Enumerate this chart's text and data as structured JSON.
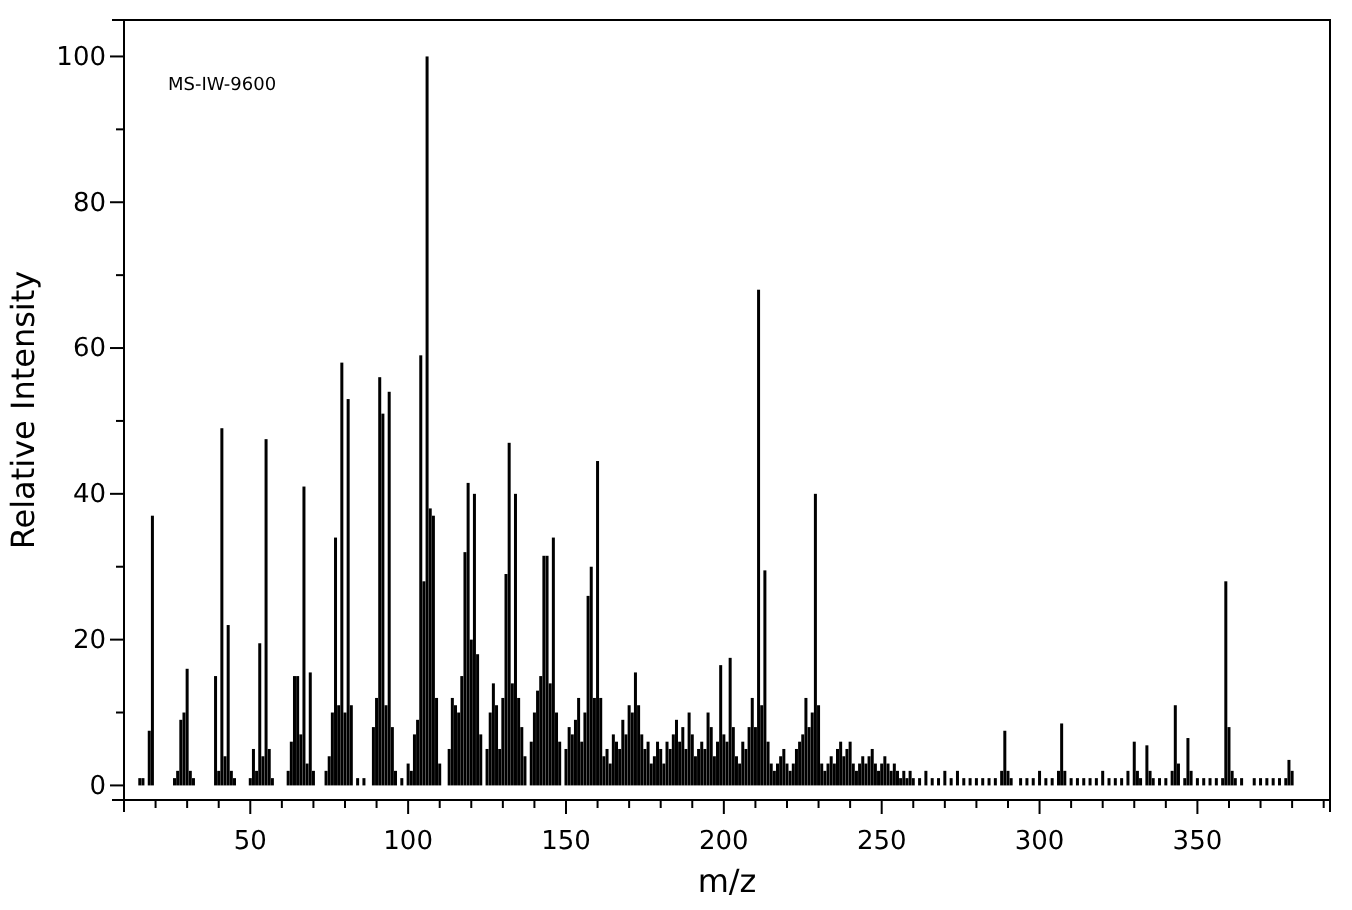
{
  "chart_data": {
    "type": "bar",
    "xlabel": "m/z",
    "ylabel": "Relative Intensity",
    "annotations": [
      "MS-IW-9600"
    ],
    "color": "#000000",
    "xlim": [
      10,
      392
    ],
    "ylim": [
      -2,
      105
    ],
    "xticks": [
      {
        "value": 10,
        "label": null
      },
      {
        "value": 20,
        "label": null
      },
      {
        "value": 30,
        "label": null
      },
      {
        "value": 40,
        "label": null
      },
      50,
      {
        "value": 60,
        "label": null
      },
      {
        "value": 70,
        "label": null
      },
      {
        "value": 80,
        "label": null
      },
      {
        "value": 90,
        "label": null
      },
      100,
      {
        "value": 110,
        "label": null
      },
      {
        "value": 120,
        "label": null
      },
      {
        "value": 130,
        "label": null
      },
      {
        "value": 140,
        "label": null
      },
      150,
      {
        "value": 160,
        "label": null
      },
      {
        "value": 170,
        "label": null
      },
      {
        "value": 180,
        "label": null
      },
      {
        "value": 190,
        "label": null
      },
      200,
      {
        "value": 210,
        "label": null
      },
      {
        "value": 220,
        "label": null
      },
      {
        "value": 230,
        "label": null
      },
      {
        "value": 240,
        "label": null
      },
      250,
      {
        "value": 260,
        "label": null
      },
      {
        "value": 270,
        "label": null
      },
      {
        "value": 280,
        "label": null
      },
      {
        "value": 290,
        "label": null
      },
      300,
      {
        "value": 310,
        "label": null
      },
      {
        "value": 320,
        "label": null
      },
      {
        "value": 330,
        "label": null
      },
      {
        "value": 340,
        "label": null
      },
      350,
      {
        "value": 360,
        "label": null
      },
      {
        "value": 370,
        "label": null
      },
      {
        "value": 380,
        "label": null
      },
      {
        "value": 390,
        "label": null
      }
    ],
    "yticks": [
      0,
      {
        "value": 10,
        "label": null
      },
      20,
      {
        "value": 30,
        "label": null
      },
      40,
      {
        "value": 50,
        "label": null
      },
      60,
      {
        "value": 70,
        "label": null
      },
      80,
      {
        "value": 90,
        "label": null
      },
      100
    ],
    "x": [
      15,
      16,
      18,
      19,
      26,
      27,
      28,
      29,
      30,
      31,
      32,
      39,
      40,
      41,
      42,
      43,
      44,
      45,
      50,
      51,
      52,
      53,
      54,
      55,
      56,
      57,
      62,
      63,
      64,
      65,
      66,
      67,
      68,
      69,
      70,
      74,
      75,
      76,
      77,
      78,
      79,
      80,
      81,
      82,
      84,
      86,
      89,
      90,
      91,
      92,
      93,
      94,
      95,
      96,
      98,
      100,
      101,
      102,
      103,
      104,
      105,
      106,
      107,
      108,
      109,
      110,
      113,
      114,
      115,
      116,
      117,
      118,
      119,
      120,
      121,
      122,
      123,
      125,
      126,
      127,
      128,
      129,
      130,
      131,
      132,
      133,
      134,
      135,
      136,
      137,
      139,
      140,
      141,
      142,
      143,
      144,
      145,
      146,
      147,
      148,
      150,
      151,
      152,
      153,
      154,
      155,
      156,
      157,
      158,
      159,
      160,
      161,
      162,
      163,
      164,
      165,
      166,
      167,
      168,
      169,
      170,
      171,
      172,
      173,
      174,
      175,
      176,
      177,
      178,
      179,
      180,
      181,
      182,
      183,
      184,
      185,
      186,
      187,
      188,
      189,
      190,
      191,
      192,
      193,
      194,
      195,
      196,
      197,
      198,
      199,
      200,
      201,
      202,
      203,
      204,
      205,
      206,
      207,
      208,
      209,
      210,
      211,
      212,
      213,
      214,
      215,
      216,
      217,
      218,
      219,
      220,
      221,
      222,
      223,
      224,
      225,
      226,
      227,
      228,
      229,
      230,
      231,
      232,
      233,
      234,
      235,
      236,
      237,
      238,
      239,
      240,
      241,
      242,
      243,
      244,
      245,
      246,
      247,
      248,
      249,
      250,
      251,
      252,
      253,
      254,
      255,
      256,
      257,
      258,
      259,
      260,
      262,
      264,
      266,
      268,
      270,
      272,
      274,
      276,
      278,
      280,
      282,
      284,
      286,
      288,
      289,
      290,
      291,
      294,
      296,
      298,
      300,
      302,
      304,
      306,
      307,
      308,
      310,
      312,
      314,
      316,
      318,
      320,
      322,
      324,
      326,
      328,
      330,
      331,
      332,
      334,
      335,
      336,
      338,
      340,
      342,
      343,
      344,
      346,
      347,
      348,
      350,
      352,
      354,
      356,
      358,
      359,
      360,
      361,
      362,
      364,
      368,
      370,
      372,
      374,
      376,
      378,
      379,
      380
    ],
    "values": [
      1,
      1,
      7.5,
      37,
      1,
      2,
      9,
      10,
      16,
      2,
      1,
      15,
      2,
      49,
      4,
      22,
      2,
      1,
      1,
      5,
      2,
      19.5,
      4,
      47.5,
      5,
      1,
      2,
      6,
      15,
      15,
      7,
      41,
      3,
      15.5,
      2,
      2,
      4,
      10,
      34,
      11,
      58,
      10,
      53,
      11,
      1,
      1,
      8,
      12,
      56,
      51,
      11,
      54,
      8,
      2,
      1,
      3,
      2,
      7,
      9,
      59,
      28,
      100,
      38,
      37,
      12,
      3,
      5,
      12,
      11,
      10,
      15,
      32,
      41.5,
      20,
      40,
      18,
      7,
      5,
      10,
      14,
      11,
      5,
      12,
      29,
      47,
      14,
      40,
      12,
      8,
      4,
      6,
      10,
      13,
      15,
      31.5,
      31.5,
      14,
      34,
      10,
      6,
      5,
      8,
      7,
      9,
      12,
      6,
      10,
      26,
      30,
      12,
      44.5,
      12,
      4,
      5,
      3,
      7,
      6,
      5,
      9,
      7,
      11,
      10,
      15.5,
      11,
      7,
      5,
      6,
      3,
      4,
      6,
      5,
      3,
      6,
      5,
      7,
      9,
      6,
      8,
      5,
      10,
      7,
      4,
      5,
      6,
      5,
      10,
      8,
      4,
      6,
      16.5,
      7,
      6,
      17.5,
      8,
      4,
      3,
      6,
      5,
      8,
      12,
      8,
      68,
      11,
      29.5,
      6,
      3,
      2,
      3,
      4,
      5,
      3,
      2,
      3,
      5,
      6,
      7,
      12,
      8,
      10,
      40,
      11,
      3,
      2,
      3,
      4,
      3,
      5,
      6,
      4,
      5,
      6,
      3,
      2,
      3,
      4,
      3,
      4,
      5,
      3,
      2,
      3,
      4,
      3,
      2,
      3,
      2,
      1,
      2,
      1,
      2,
      1,
      1,
      2,
      1,
      1,
      2,
      1,
      2,
      1,
      1,
      1,
      1,
      1,
      1,
      2,
      7.5,
      2,
      1,
      1,
      1,
      1,
      2,
      1,
      1,
      2,
      8.5,
      2,
      1,
      1,
      1,
      1,
      1,
      2,
      1,
      1,
      1,
      2,
      6,
      2,
      1,
      5.5,
      2,
      1,
      1,
      1,
      2,
      11,
      3,
      1,
      6.5,
      2,
      1,
      1,
      1,
      1,
      1,
      28,
      8,
      2,
      1,
      1,
      1,
      1,
      1,
      1,
      1,
      1,
      3.5,
      2
    ]
  }
}
